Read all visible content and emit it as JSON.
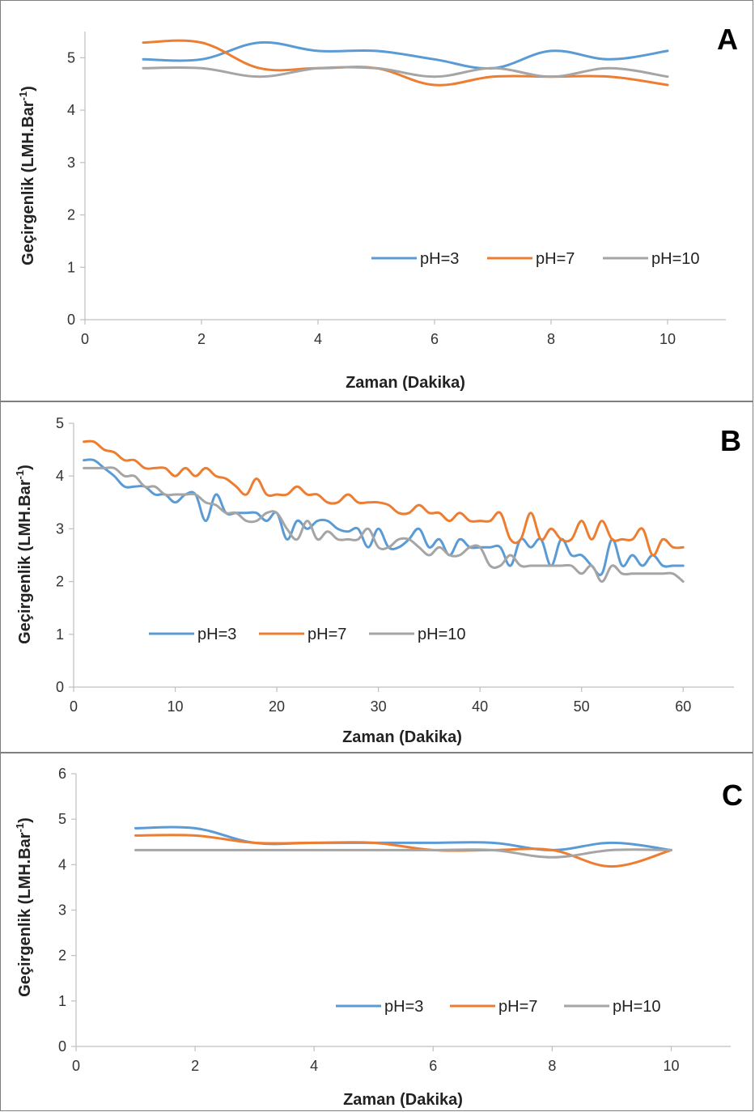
{
  "chart_data": [
    {
      "panel_label": "A",
      "type": "line",
      "xlabel": "Zaman (Dakika)",
      "ylabel_main": "Geçirgenlik  (LMH.Bar",
      "ylabel_sup": "-1",
      "ylabel_close": ")",
      "xlim": [
        0,
        11
      ],
      "ylim": [
        0,
        5.5
      ],
      "xticks": [
        "0",
        "2",
        "4",
        "6",
        "8",
        "10"
      ],
      "yticks": [
        "0",
        "1",
        "2",
        "3",
        "4",
        "5"
      ],
      "xtick_values": [
        0,
        2,
        4,
        6,
        8,
        10
      ],
      "ytick_values": [
        0,
        1,
        2,
        3,
        4,
        5
      ],
      "legend_position": "lower-right",
      "series": [
        {
          "name": "pH=3",
          "color": "#5B9BD5",
          "x": [
            1,
            2,
            3,
            4,
            5,
            6,
            7,
            8,
            9,
            10
          ],
          "values": [
            4.97,
            4.97,
            5.29,
            5.13,
            5.13,
            4.97,
            4.8,
            5.13,
            4.97,
            5.13
          ]
        },
        {
          "name": "pH=7",
          "color": "#ED7D31",
          "x": [
            1,
            2,
            3,
            4,
            5,
            6,
            7,
            8,
            9,
            10
          ],
          "values": [
            5.29,
            5.29,
            4.8,
            4.8,
            4.8,
            4.48,
            4.64,
            4.64,
            4.64,
            4.48
          ]
        },
        {
          "name": "pH=10",
          "color": "#A5A5A5",
          "x": [
            1,
            2,
            3,
            4,
            5,
            6,
            7,
            8,
            9,
            10
          ],
          "values": [
            4.8,
            4.8,
            4.64,
            4.8,
            4.8,
            4.64,
            4.8,
            4.64,
            4.8,
            4.64
          ]
        }
      ]
    },
    {
      "panel_label": "B",
      "type": "line",
      "xlabel": "Zaman (Dakika)",
      "ylabel_main": "Geçirgenlik (LMH.Bar",
      "ylabel_sup": "-1",
      "ylabel_close": ")",
      "xlim": [
        0,
        65
      ],
      "ylim": [
        0,
        5
      ],
      "xticks": [
        "0",
        "10",
        "20",
        "30",
        "40",
        "50",
        "60"
      ],
      "yticks": [
        "0",
        "1",
        "2",
        "3",
        "4",
        "5"
      ],
      "xtick_values": [
        0,
        10,
        20,
        30,
        40,
        50,
        60
      ],
      "ytick_values": [
        0,
        1,
        2,
        3,
        4,
        5
      ],
      "legend_position": "lower-left",
      "series": [
        {
          "name": "pH=3",
          "color": "#5B9BD5",
          "x": [
            1,
            2,
            3,
            4,
            5,
            6,
            7,
            8,
            9,
            10,
            11,
            12,
            13,
            14,
            15,
            16,
            17,
            18,
            19,
            20,
            21,
            22,
            23,
            24,
            25,
            26,
            27,
            28,
            29,
            30,
            31,
            32,
            33,
            34,
            35,
            36,
            37,
            38,
            39,
            40,
            41,
            42,
            43,
            44,
            45,
            46,
            47,
            48,
            49,
            50,
            51,
            52,
            53,
            54,
            55,
            56,
            57,
            58,
            59,
            60
          ],
          "values": [
            4.3,
            4.3,
            4.15,
            4.0,
            3.8,
            3.8,
            3.8,
            3.65,
            3.65,
            3.5,
            3.65,
            3.65,
            3.15,
            3.65,
            3.3,
            3.3,
            3.3,
            3.3,
            3.15,
            3.3,
            2.8,
            3.15,
            3.0,
            3.15,
            3.15,
            3.0,
            2.95,
            3.0,
            2.65,
            3.0,
            2.65,
            2.65,
            2.8,
            3.0,
            2.65,
            2.8,
            2.5,
            2.8,
            2.65,
            2.65,
            2.65,
            2.65,
            2.3,
            2.8,
            2.65,
            2.8,
            2.3,
            2.8,
            2.5,
            2.5,
            2.3,
            2.15,
            2.8,
            2.3,
            2.5,
            2.3,
            2.5,
            2.3,
            2.3,
            2.3
          ]
        },
        {
          "name": "pH=7",
          "color": "#ED7D31",
          "x": [
            1,
            2,
            3,
            4,
            5,
            6,
            7,
            8,
            9,
            10,
            11,
            12,
            13,
            14,
            15,
            16,
            17,
            18,
            19,
            20,
            21,
            22,
            23,
            24,
            25,
            26,
            27,
            28,
            29,
            30,
            31,
            32,
            33,
            34,
            35,
            36,
            37,
            38,
            39,
            40,
            41,
            42,
            43,
            44,
            45,
            46,
            47,
            48,
            49,
            50,
            51,
            52,
            53,
            54,
            55,
            56,
            57,
            58,
            59,
            60
          ],
          "values": [
            4.65,
            4.65,
            4.5,
            4.45,
            4.3,
            4.3,
            4.15,
            4.15,
            4.15,
            4.0,
            4.15,
            4.0,
            4.15,
            4.0,
            3.95,
            3.8,
            3.65,
            3.95,
            3.65,
            3.65,
            3.65,
            3.8,
            3.65,
            3.65,
            3.5,
            3.5,
            3.65,
            3.5,
            3.5,
            3.5,
            3.45,
            3.3,
            3.3,
            3.45,
            3.3,
            3.3,
            3.15,
            3.3,
            3.15,
            3.15,
            3.15,
            3.3,
            2.8,
            2.8,
            3.3,
            2.8,
            3.0,
            2.8,
            2.8,
            3.15,
            2.8,
            3.15,
            2.8,
            2.8,
            2.8,
            3.0,
            2.5,
            2.8,
            2.65,
            2.65
          ]
        },
        {
          "name": "pH=10",
          "color": "#A5A5A5",
          "x": [
            1,
            2,
            3,
            4,
            5,
            6,
            7,
            8,
            9,
            10,
            11,
            12,
            13,
            14,
            15,
            16,
            17,
            18,
            19,
            20,
            21,
            22,
            23,
            24,
            25,
            26,
            27,
            28,
            29,
            30,
            31,
            32,
            33,
            34,
            35,
            36,
            37,
            38,
            39,
            40,
            41,
            42,
            43,
            44,
            45,
            46,
            47,
            48,
            49,
            50,
            51,
            52,
            53,
            54,
            55,
            56,
            57,
            58,
            59,
            60
          ],
          "values": [
            4.15,
            4.15,
            4.15,
            4.15,
            4.0,
            4.0,
            3.8,
            3.8,
            3.65,
            3.65,
            3.65,
            3.65,
            3.5,
            3.45,
            3.3,
            3.3,
            3.15,
            3.15,
            3.3,
            3.3,
            3.0,
            2.8,
            3.15,
            2.8,
            2.95,
            2.8,
            2.8,
            2.8,
            3.0,
            2.65,
            2.65,
            2.8,
            2.8,
            2.65,
            2.5,
            2.65,
            2.5,
            2.5,
            2.65,
            2.65,
            2.3,
            2.3,
            2.5,
            2.3,
            2.3,
            2.3,
            2.3,
            2.3,
            2.3,
            2.15,
            2.3,
            2.0,
            2.3,
            2.15,
            2.15,
            2.15,
            2.15,
            2.15,
            2.15,
            2.0
          ]
        }
      ]
    },
    {
      "panel_label": "C",
      "type": "line",
      "xlabel": "Zaman (Dakika)",
      "ylabel_main": "Geçirgenlik (LMH.Bar",
      "ylabel_sup": "-1",
      "ylabel_close": ")",
      "xlim": [
        0,
        11
      ],
      "ylim": [
        0,
        6
      ],
      "xticks": [
        "0",
        "2",
        "4",
        "6",
        "8",
        "10"
      ],
      "yticks": [
        "0",
        "1",
        "2",
        "3",
        "4",
        "5",
        "6"
      ],
      "xtick_values": [
        0,
        2,
        4,
        6,
        8,
        10
      ],
      "ytick_values": [
        0,
        1,
        2,
        3,
        4,
        5,
        6
      ],
      "legend_position": "lower-right",
      "series": [
        {
          "name": "pH=3",
          "color": "#5B9BD5",
          "x": [
            1,
            2,
            3,
            4,
            5,
            6,
            7,
            8,
            9,
            10
          ],
          "values": [
            4.8,
            4.8,
            4.48,
            4.48,
            4.48,
            4.48,
            4.48,
            4.32,
            4.48,
            4.32
          ]
        },
        {
          "name": "pH=7",
          "color": "#ED7D31",
          "x": [
            1,
            2,
            3,
            4,
            5,
            6,
            7,
            8,
            9,
            10
          ],
          "values": [
            4.64,
            4.64,
            4.48,
            4.48,
            4.48,
            4.32,
            4.32,
            4.32,
            3.96,
            4.32
          ]
        },
        {
          "name": "pH=10",
          "color": "#A5A5A5",
          "x": [
            1,
            2,
            3,
            4,
            5,
            6,
            7,
            8,
            9,
            10
          ],
          "values": [
            4.32,
            4.32,
            4.32,
            4.32,
            4.32,
            4.32,
            4.32,
            4.16,
            4.32,
            4.32
          ]
        }
      ]
    }
  ]
}
